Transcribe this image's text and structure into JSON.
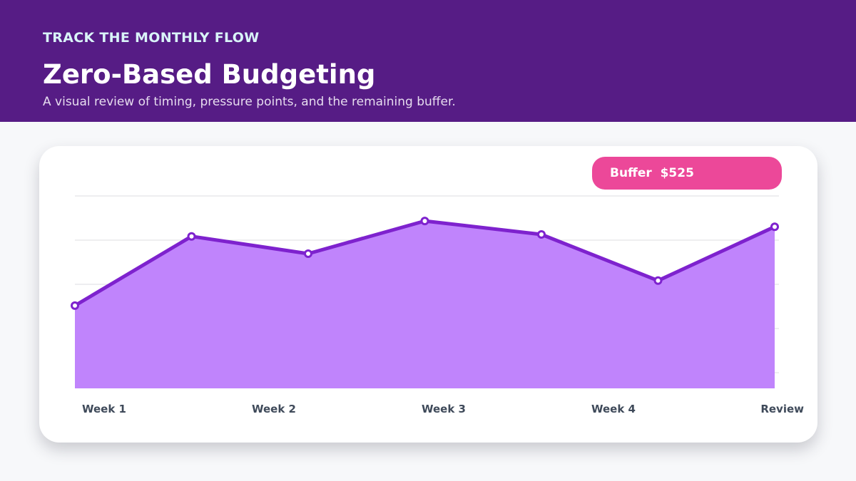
{
  "header": {
    "eyebrow": "TRACK THE MONTHLY FLOW",
    "title": "Zero-Based Budgeting",
    "subtitle": "A visual review of timing, pressure points, and the remaining buffer."
  },
  "badge": {
    "label": "Buffer",
    "value": "$525"
  },
  "colors": {
    "header_bg": "#561c85",
    "area_fill": "#c084fc",
    "line": "#7e22ce",
    "badge": "#ec4899"
  },
  "chart_data": {
    "type": "area",
    "x": [
      1,
      2,
      3,
      4,
      5,
      6,
      7
    ],
    "values": [
      43,
      79,
      70,
      87,
      80,
      56,
      84
    ],
    "ylim": [
      0,
      100
    ],
    "grid": true,
    "tick_labels": [
      "Week 1",
      "Week 2",
      "Week 3",
      "Week 4",
      "Review"
    ]
  }
}
